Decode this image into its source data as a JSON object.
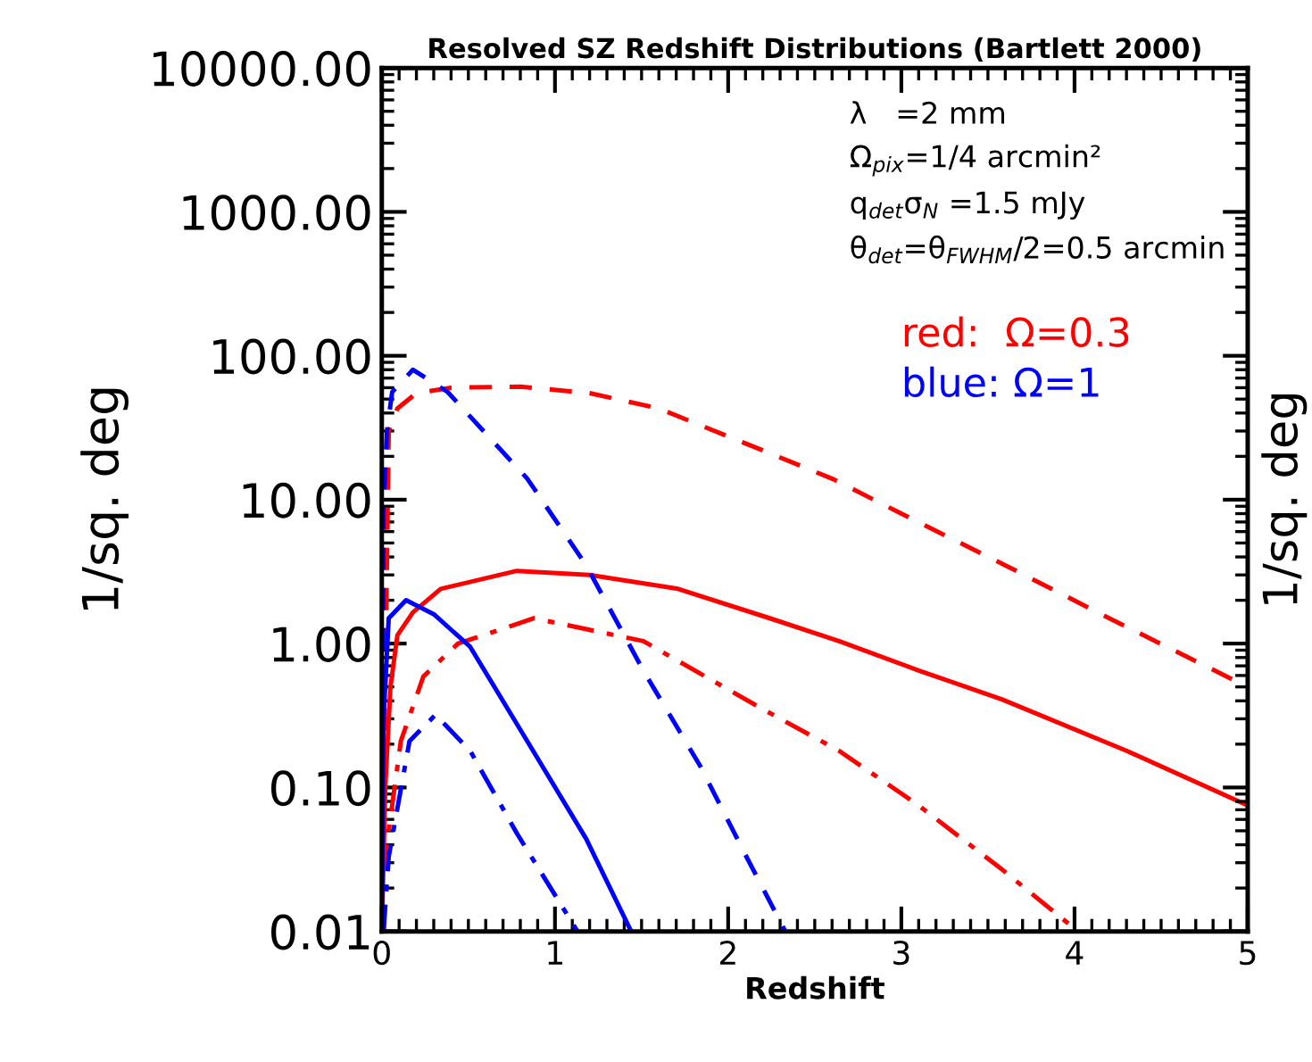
{
  "chart_data": {
    "type": "line",
    "title": "Resolved SZ Redshift Distributions (Bartlett 2000)",
    "xlabel": "Redshift",
    "ylabel": "1/sq. deg",
    "y2label": "1/sq. deg",
    "log": "y",
    "xlim": [
      0,
      5
    ],
    "xticks": [
      0,
      1,
      2,
      3,
      4,
      5
    ],
    "ylim": [
      0.01,
      10000
    ],
    "yticks": [
      {
        "value": 0.01,
        "label": "0.01"
      },
      {
        "value": 0.1,
        "label": "0.10"
      },
      {
        "value": 1,
        "label": "1.00"
      },
      {
        "value": 10,
        "label": "10.00"
      },
      {
        "value": 100,
        "label": "100.00"
      },
      {
        "value": 1000,
        "label": "1000.00"
      },
      {
        "value": 10000,
        "label": "10000.00"
      }
    ],
    "grid": false,
    "legend": false,
    "marker": "none",
    "series": [
      {
        "color": "#ff0000",
        "line_style": "dashed",
        "x": [
          0.0,
          0.01,
          0.02,
          0.04,
          0.09,
          0.2,
          0.4,
          0.8,
          1.2,
          1.6,
          2.2,
          2.6,
          3.0,
          3.6,
          4.2,
          5.0
        ],
        "values": [
          0.01,
          0.1,
          0.5,
          30,
          43,
          55,
          60,
          61,
          55,
          43,
          22,
          14,
          8,
          3.5,
          1.5,
          0.5
        ]
      },
      {
        "color": "#ff0000",
        "line_style": "solid",
        "x": [
          0.0,
          0.02,
          0.05,
          0.09,
          0.18,
          0.34,
          0.78,
          1.2,
          1.71,
          2.24,
          2.64,
          3.1,
          3.58,
          4.3,
          5.0
        ],
        "values": [
          0.01,
          0.1,
          0.5,
          1.14,
          1.65,
          2.4,
          3.2,
          3.0,
          2.4,
          1.5,
          1.04,
          0.65,
          0.41,
          0.18,
          0.075
        ]
      },
      {
        "color": "#ff0000",
        "line_style": "dashdot",
        "x": [
          0.01,
          0.04,
          0.11,
          0.24,
          0.44,
          0.88,
          1.51,
          2.2,
          2.64,
          3.1,
          3.58,
          4.02
        ],
        "values": [
          0.01,
          0.05,
          0.21,
          0.59,
          1.0,
          1.5,
          1.04,
          0.35,
          0.18,
          0.075,
          0.027,
          0.01
        ]
      },
      {
        "color": "#0000ff",
        "line_style": "dashed",
        "x": [
          0.0,
          0.01,
          0.03,
          0.06,
          0.18,
          0.38,
          0.84,
          1.18,
          1.51,
          1.84,
          2.1,
          2.33
        ],
        "values": [
          0.01,
          9,
          30,
          56,
          80,
          56,
          14,
          3.5,
          0.65,
          0.14,
          0.034,
          0.01
        ]
      },
      {
        "color": "#0000ff",
        "line_style": "solid",
        "x": [
          0.0,
          0.01,
          0.04,
          0.14,
          0.3,
          0.51,
          0.84,
          1.18,
          1.44
        ],
        "values": [
          0.01,
          0.3,
          1.5,
          2.0,
          1.6,
          0.95,
          0.21,
          0.044,
          0.01
        ]
      },
      {
        "color": "#0000ff",
        "line_style": "dashdot",
        "x": [
          0.01,
          0.04,
          0.16,
          0.31,
          0.51,
          0.78,
          1.13
        ],
        "values": [
          0.01,
          0.033,
          0.21,
          0.32,
          0.18,
          0.048,
          0.01
        ]
      }
    ],
    "annotations": [
      {
        "text": "λ   =2 mm"
      },
      {
        "text": "Ω$_{pix}$=1/4 arcmin²"
      },
      {
        "text": "q$_{det}$σ$_{N}$ =1.5 mJy"
      },
      {
        "text": "θ$_{det}$=θ$_{FWHM}$/2=0.5 arcmin"
      },
      {
        "text": "red:  Ω=0.3"
      },
      {
        "text": "blue: Ω=1"
      }
    ]
  }
}
